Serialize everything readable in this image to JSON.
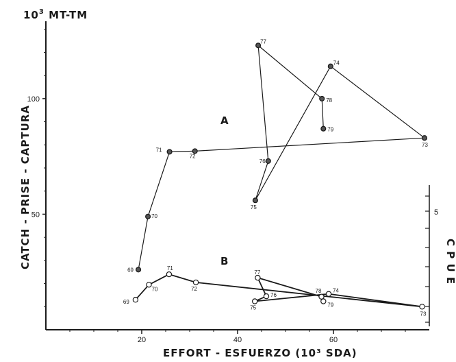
{
  "chart_data": {
    "type": "line",
    "title": "",
    "xlabel": "EFFORT - ESFUERZO (10³ SDA)",
    "ylabel": "CATCH - PRISE - CAPTURA",
    "y_unit_label": "10³ MT-TM",
    "y2label": "C P U E",
    "y2_tick_label": "5",
    "xlim": [
      0,
      80
    ],
    "ylim": [
      0,
      140
    ],
    "x_ticks": [
      20,
      40,
      60
    ],
    "x_tick_labels": [
      "20",
      "40",
      "60"
    ],
    "y_ticks": [
      50,
      100
    ],
    "y_tick_labels": [
      "50",
      "100"
    ],
    "grid": false,
    "series": [
      {
        "name": "A",
        "marker": "filled-circle",
        "years": [
          "69",
          "70",
          "71",
          "72",
          "73",
          "74",
          "75",
          "76",
          "77",
          "78",
          "79"
        ],
        "x": [
          19.3,
          21.3,
          25.8,
          31.1,
          79.0,
          59.4,
          43.7,
          46.4,
          44.3,
          57.6,
          57.9
        ],
        "y": [
          26,
          49,
          77,
          77.3,
          83,
          114,
          56,
          73,
          123,
          100,
          87
        ]
      },
      {
        "name": "B",
        "marker": "open-circle",
        "years": [
          "69",
          "70",
          "71",
          "72",
          "73",
          "74",
          "75",
          "76",
          "77",
          "78",
          "79"
        ],
        "x": [
          18.7,
          21.5,
          25.7,
          31.3,
          78.5,
          59.0,
          43.6,
          46.0,
          44.2,
          57.5,
          57.9
        ],
        "y": [
          13,
          19.5,
          24,
          20.5,
          10,
          15.5,
          12.3,
          14.5,
          22.5,
          14.3,
          12.3
        ]
      }
    ]
  }
}
